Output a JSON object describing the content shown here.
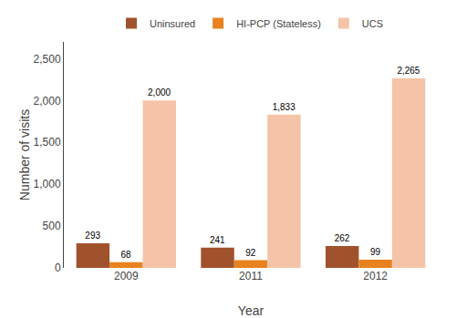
{
  "chart_data": {
    "type": "bar",
    "xlabel": "Year",
    "ylabel": "Number of visits",
    "categories": [
      "2009",
      "2011",
      "2012"
    ],
    "series": [
      {
        "name": "Uninsured",
        "color": "#A0522D",
        "values": [
          293,
          241,
          262
        ]
      },
      {
        "name": "HI-PCP (Stateless)",
        "color": "#E8821E",
        "values": [
          68,
          92,
          99
        ]
      },
      {
        "name": "UCS",
        "color": "#F5C4A8",
        "values": [
          2000,
          1833,
          2265
        ],
        "value_labels": [
          "2,000",
          "1,833",
          "2,265"
        ]
      }
    ],
    "ylim": [
      0,
      2700
    ],
    "yticks": [
      0,
      500,
      {
        "value": 1000,
        "label": "1,000"
      },
      {
        "value": 1500,
        "label": "1,500"
      },
      {
        "value": 2000,
        "label": "2,000"
      },
      {
        "value": 2500,
        "label": "2,500"
      }
    ],
    "grid": false,
    "legend": "top",
    "data_labels": true
  }
}
